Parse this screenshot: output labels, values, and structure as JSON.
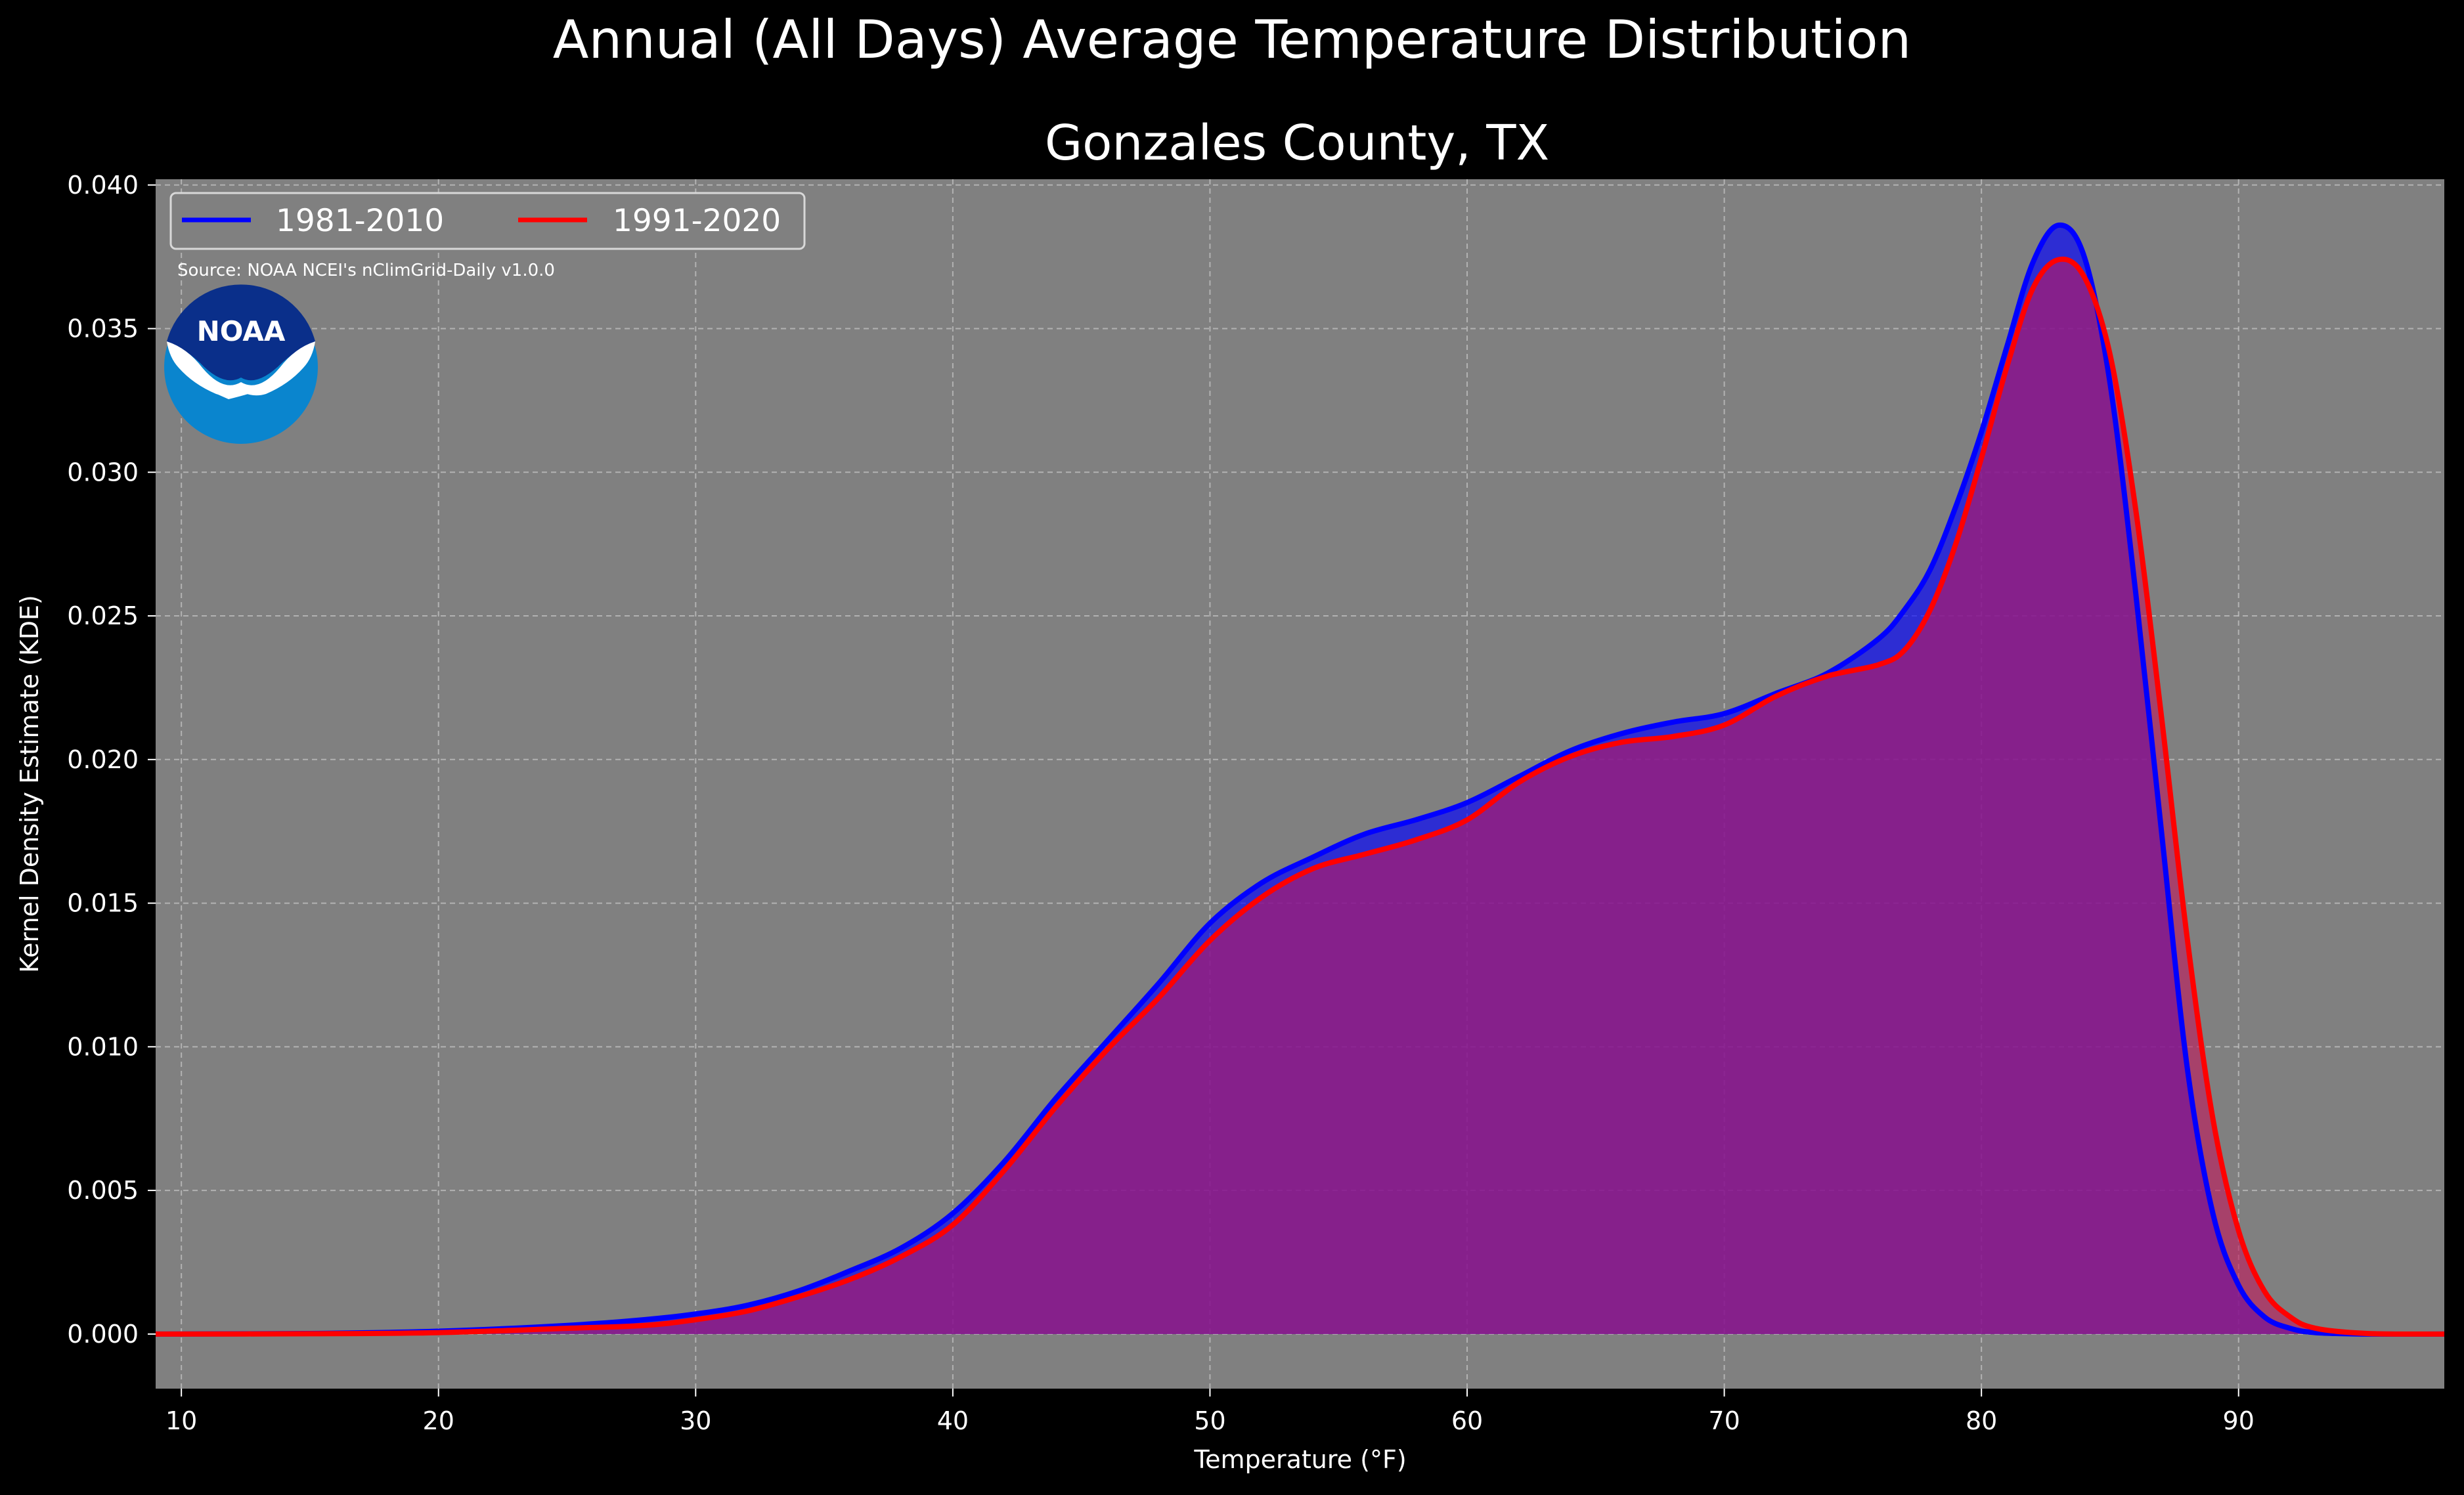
{
  "chart_data": {
    "type": "area",
    "title": "Annual (All Days) Average Temperature Distribution",
    "subtitle": "Gonzales County, TX",
    "xlabel": "Temperature (°F)",
    "ylabel": "Kernel Density Estimate (KDE)",
    "xlim": [
      9,
      98
    ],
    "ylim": [
      -0.0019,
      0.0402
    ],
    "xticks": [
      10,
      20,
      30,
      40,
      50,
      60,
      70,
      80,
      90
    ],
    "yticks": [
      "0.000",
      "0.005",
      "0.010",
      "0.015",
      "0.020",
      "0.025",
      "0.030",
      "0.035",
      "0.040"
    ],
    "grid": true,
    "legend_position": "upper-left",
    "source_note": "Source: NOAA NCEI's nClimGrid-Daily v1.0.0",
    "logo_text": "NOAA",
    "series": [
      {
        "name": "1981-2010",
        "color": "#0000ff",
        "fill": "#0000ff",
        "x": [
          9,
          15,
          20,
          25,
          28,
          30,
          32,
          34,
          36,
          38,
          40,
          42,
          44,
          46,
          48,
          50,
          52,
          54,
          56,
          58,
          60,
          62,
          64,
          66,
          68,
          70,
          72,
          74,
          76,
          77,
          78,
          79,
          80,
          81,
          82,
          83,
          84,
          85,
          86,
          87,
          88,
          89,
          90,
          91,
          92,
          93,
          95,
          98
        ],
        "y": [
          0.0,
          2e-05,
          0.0001,
          0.0003,
          0.0005,
          0.0007,
          0.001,
          0.0015,
          0.0022,
          0.003,
          0.0042,
          0.006,
          0.0082,
          0.0102,
          0.0122,
          0.0143,
          0.0157,
          0.0166,
          0.0174,
          0.0179,
          0.0185,
          0.0194,
          0.0203,
          0.0209,
          0.0213,
          0.0216,
          0.0223,
          0.023,
          0.0242,
          0.0252,
          0.0266,
          0.0288,
          0.0314,
          0.0344,
          0.0373,
          0.0386,
          0.0375,
          0.0331,
          0.0258,
          0.0175,
          0.0093,
          0.0042,
          0.0017,
          0.0006,
          0.0002,
          5e-05,
          0.0,
          0.0
        ]
      },
      {
        "name": "1991-2020",
        "color": "#ff0000",
        "fill": "#c2185b",
        "x": [
          9,
          15,
          20,
          25,
          28,
          30,
          32,
          34,
          36,
          38,
          40,
          42,
          44,
          46,
          48,
          50,
          52,
          54,
          56,
          58,
          60,
          62,
          64,
          66,
          68,
          70,
          72,
          74,
          76,
          77,
          78,
          79,
          80,
          81,
          82,
          83,
          84,
          85,
          86,
          87,
          88,
          89,
          90,
          91,
          92,
          93,
          95,
          98
        ],
        "y": [
          0.0,
          1e-05,
          5e-05,
          0.0002,
          0.0003,
          0.0005,
          0.0008,
          0.0013,
          0.0019,
          0.0027,
          0.0038,
          0.0057,
          0.0079,
          0.0099,
          0.0117,
          0.0137,
          0.0152,
          0.0162,
          0.0167,
          0.0172,
          0.0179,
          0.0192,
          0.0201,
          0.0206,
          0.0208,
          0.0212,
          0.0222,
          0.0229,
          0.0233,
          0.0238,
          0.0252,
          0.0275,
          0.0305,
          0.0337,
          0.0364,
          0.0374,
          0.0368,
          0.0341,
          0.0287,
          0.0215,
          0.0138,
          0.0075,
          0.0036,
          0.0015,
          0.0006,
          0.0002,
          2e-05,
          0.0
        ]
      }
    ]
  }
}
